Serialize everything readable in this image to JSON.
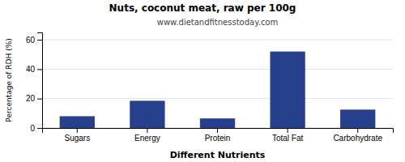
{
  "chart_data": {
    "type": "bar",
    "title": "Nuts, coconut meat, raw per 100g",
    "subtitle": "www.dietandfitnesstoday.com",
    "xlabel": "Different Nutrients",
    "ylabel": "Percentage of RDH (%)",
    "categories": [
      "Sugars",
      "Energy",
      "Protein",
      "Total Fat",
      "Carbohydrate"
    ],
    "values": [
      8,
      18.5,
      6.5,
      52,
      12.5
    ],
    "color": "#27408B",
    "ylim": [
      0,
      65
    ],
    "yticks": [
      0,
      20,
      40,
      60
    ],
    "grid": true
  }
}
